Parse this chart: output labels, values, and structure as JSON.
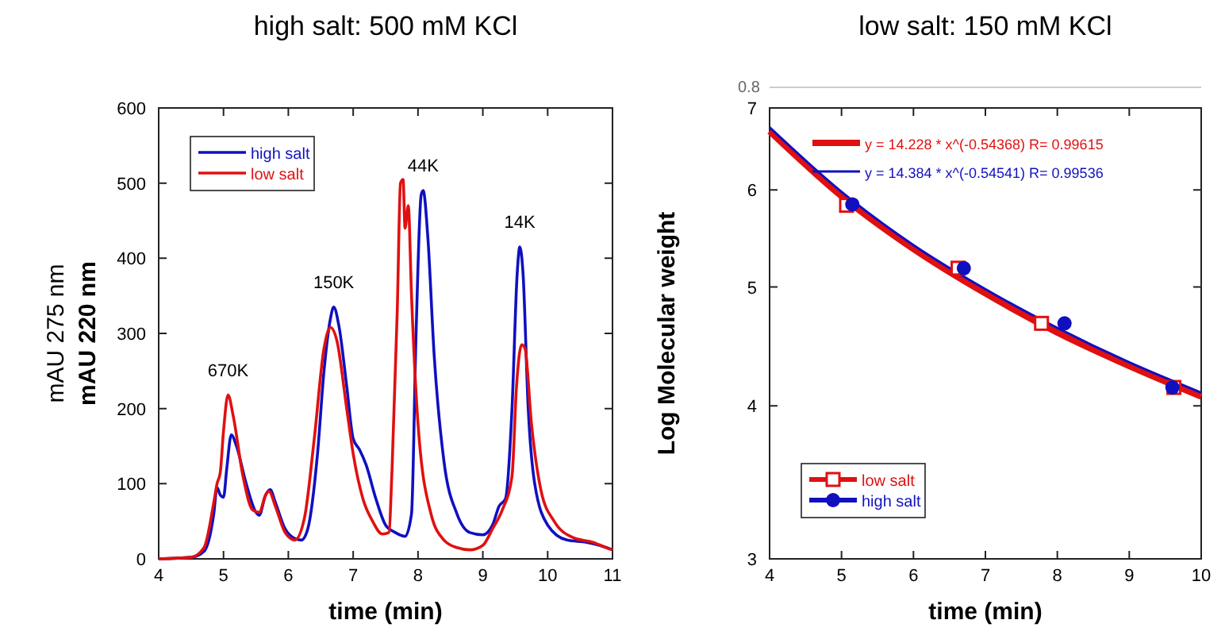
{
  "chart_data": [
    {
      "type": "line",
      "title": "high salt:  500 mM KCl",
      "xlabel": "time  (min)",
      "ylabel": "mAU 275 nm\nmAU 220 nm",
      "xlim": [
        4,
        11
      ],
      "xticks": [
        4,
        5,
        6,
        7,
        8,
        9,
        10,
        11
      ],
      "ylim": [
        0,
        600
      ],
      "yticks": [
        0,
        100,
        200,
        300,
        400,
        500,
        600
      ],
      "grid": false,
      "legend": "top left",
      "line_style": "solid",
      "annotations": [
        {
          "text": "670K",
          "x": 5.07,
          "y": 218
        },
        {
          "text": "150K",
          "x": 6.7,
          "y": 335
        },
        {
          "text": "44K",
          "x": 8.08,
          "y": 490
        },
        {
          "text": "14K",
          "x": 9.57,
          "y": 415
        }
      ],
      "series": [
        {
          "name": "high salt",
          "color": "#1010c0",
          "x": [
            4.0,
            4.5,
            4.7,
            4.85,
            4.9,
            4.95,
            5.0,
            5.05,
            5.12,
            5.2,
            5.35,
            5.5,
            5.55,
            5.65,
            5.72,
            5.8,
            5.95,
            6.1,
            6.2,
            6.3,
            6.45,
            6.55,
            6.65,
            6.7,
            6.78,
            6.9,
            7.0,
            7.1,
            7.2,
            7.35,
            7.5,
            7.65,
            7.8,
            7.9,
            7.97,
            8.05,
            8.08,
            8.15,
            8.25,
            8.4,
            8.6,
            8.8,
            9.0,
            9.15,
            9.25,
            9.35,
            9.45,
            9.53,
            9.57,
            9.62,
            9.7,
            9.8,
            10.0,
            10.3,
            10.6,
            10.8,
            11.0
          ],
          "values": [
            0,
            2,
            10,
            60,
            95,
            85,
            82,
            120,
            165,
            150,
            100,
            62,
            58,
            85,
            92,
            75,
            40,
            27,
            25,
            40,
            140,
            250,
            320,
            335,
            310,
            230,
            160,
            145,
            125,
            80,
            45,
            35,
            30,
            60,
            300,
            485,
            490,
            430,
            270,
            130,
            60,
            35,
            32,
            45,
            70,
            80,
            200,
            380,
            415,
            380,
            200,
            100,
            45,
            25,
            22,
            18,
            12
          ]
        },
        {
          "name": "low salt",
          "color": "#e01010",
          "x": [
            4.0,
            4.5,
            4.7,
            4.85,
            4.9,
            4.95,
            5.0,
            5.07,
            5.15,
            5.3,
            5.45,
            5.55,
            5.65,
            5.7,
            5.8,
            5.95,
            6.1,
            6.25,
            6.4,
            6.55,
            6.65,
            6.75,
            6.9,
            7.0,
            7.15,
            7.3,
            7.45,
            7.55,
            7.6,
            7.68,
            7.73,
            7.77,
            7.8,
            7.85,
            7.9,
            8.0,
            8.2,
            8.4,
            8.6,
            8.8,
            9.0,
            9.15,
            9.3,
            9.45,
            9.52,
            9.6,
            9.65,
            9.75,
            9.9,
            10.1,
            10.4,
            10.7,
            10.9,
            11.0
          ],
          "values": [
            0,
            2,
            15,
            75,
            100,
            115,
            170,
            218,
            190,
            110,
            65,
            62,
            85,
            90,
            70,
            35,
            25,
            55,
            160,
            280,
            308,
            290,
            200,
            140,
            80,
            50,
            33,
            35,
            120,
            330,
            500,
            505,
            440,
            470,
            350,
            180,
            60,
            25,
            15,
            12,
            18,
            40,
            65,
            110,
            230,
            285,
            280,
            180,
            90,
            50,
            28,
            22,
            15,
            12
          ]
        }
      ]
    },
    {
      "type": "scatter",
      "title": "low salt:  150 mM KCl",
      "xlabel": "time  (min)",
      "ylabel": "Log Molecular weight",
      "xlim": [
        4,
        10
      ],
      "xticks": [
        4,
        5,
        6,
        7,
        8,
        9,
        10
      ],
      "ylim": [
        3,
        7
      ],
      "yticks": [
        3,
        4,
        5,
        6,
        7
      ],
      "log": true,
      "grid": false,
      "legend": "left",
      "annotations": [
        "0.8"
      ],
      "series": [
        {
          "name": "y = 14.228 * x^(-0.54368)  R= 0.99615",
          "type": "line",
          "color": "#e01010",
          "line_style": "solid",
          "x": [
            4,
            5,
            6,
            7,
            8,
            9,
            10
          ],
          "values": [
            6.7,
            5.93,
            5.37,
            4.94,
            4.59,
            4.31,
            4.07
          ]
        },
        {
          "name": "y = 14.384 * x^(-0.54541)  R= 0.99536",
          "type": "line",
          "color": "#1010c0",
          "line_style": "solid",
          "x": [
            4,
            5,
            6,
            7,
            8,
            9,
            10
          ],
          "values": [
            6.75,
            5.98,
            5.41,
            4.98,
            4.63,
            4.34,
            4.1
          ]
        },
        {
          "name": "low salt",
          "color": "#e01010",
          "marker": "square",
          "x": [
            5.07,
            6.62,
            7.78,
            9.62
          ],
          "values": [
            5.83,
            5.18,
            4.67,
            4.14
          ]
        },
        {
          "name": "high salt",
          "color": "#1010c0",
          "marker": "circle",
          "x": [
            5.15,
            6.7,
            8.1,
            9.6
          ],
          "values": [
            5.84,
            5.18,
            4.67,
            4.14
          ]
        }
      ]
    }
  ]
}
